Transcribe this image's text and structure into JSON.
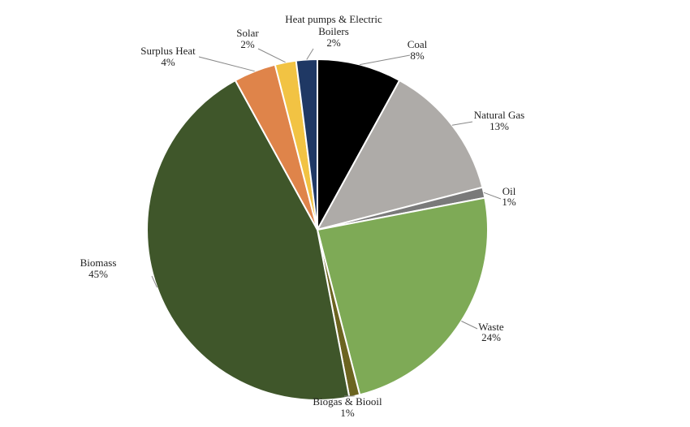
{
  "chart_data": {
    "type": "pie",
    "title": "",
    "start_angle_deg": 0,
    "direction": "clockwise",
    "slices": [
      {
        "name": "Coal",
        "value": 8,
        "label": "8%",
        "color": "#000000"
      },
      {
        "name": "Natural Gas",
        "value": 13,
        "label": "13%",
        "color": "#aeaba8"
      },
      {
        "name": "Oil",
        "value": 1,
        "label": "1%",
        "color": "#7a7a7a"
      },
      {
        "name": "Waste",
        "value": 24,
        "label": "24%",
        "color": "#7eaa56"
      },
      {
        "name": "Biogas & Biooil",
        "value": 1,
        "label": "1%",
        "color": "#6b6420"
      },
      {
        "name": "Biomass",
        "value": 45,
        "label": "45%",
        "color": "#3f562a"
      },
      {
        "name": "Surplus Heat",
        "value": 4,
        "label": "4%",
        "color": "#df844a"
      },
      {
        "name": "Solar",
        "value": 2,
        "label": "2%",
        "color": "#f2c343"
      },
      {
        "name": "Heat pumps & Electric Boilers",
        "value": 2,
        "label": "2%",
        "color": "#1f3864"
      }
    ]
  }
}
